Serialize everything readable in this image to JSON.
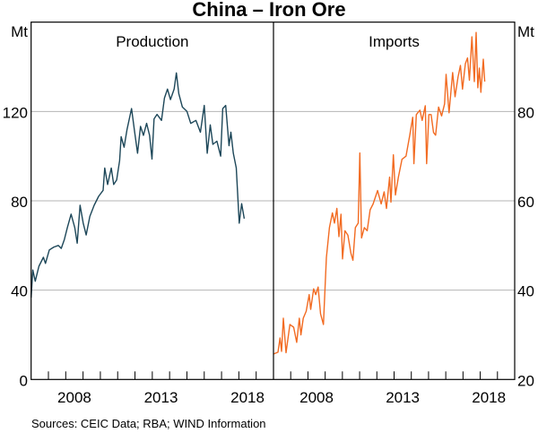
{
  "chart_data": {
    "type": "line",
    "title": "China – Iron Ore",
    "source": "Sources: CEIC Data; RBA; WIND Information",
    "xlim": [
      2006,
      2020
    ],
    "x_ticks": [
      2007,
      2008,
      2009,
      2010,
      2011,
      2012,
      2013,
      2014,
      2015,
      2016,
      2017,
      2018,
      2019
    ],
    "x_tick_labels": [
      "2008",
      "2013",
      "2018"
    ],
    "x_label_years": [
      2008,
      2013,
      2018
    ],
    "panels": [
      {
        "name": "Production",
        "unit": "Mt",
        "axis_side": "left",
        "ylim": [
          0,
          160
        ],
        "y_ticks": [
          0,
          40,
          80,
          120
        ],
        "y_tick_labels": [
          "0",
          "40",
          "80",
          "120"
        ],
        "color": "#1d4759",
        "x": [
          2006.0,
          2006.1,
          2006.24,
          2006.45,
          2006.71,
          2006.83,
          2007.05,
          2007.31,
          2007.57,
          2007.74,
          2007.92,
          2008.09,
          2008.31,
          2008.52,
          2008.66,
          2008.83,
          2009.01,
          2009.18,
          2009.39,
          2009.64,
          2009.9,
          2010.16,
          2010.25,
          2010.42,
          2010.63,
          2010.77,
          2010.94,
          2011.11,
          2011.2,
          2011.37,
          2011.54,
          2011.8,
          2011.98,
          2012.15,
          2012.32,
          2012.49,
          2012.67,
          2012.84,
          2012.98,
          2013.1,
          2013.27,
          2013.53,
          2013.7,
          2013.88,
          2014.05,
          2014.26,
          2014.39,
          2014.53,
          2014.74,
          2015.0,
          2015.22,
          2015.52,
          2015.78,
          2016.0,
          2016.17,
          2016.35,
          2016.5,
          2016.73,
          2016.95,
          2017.07,
          2017.24,
          2017.43,
          2017.54,
          2017.68,
          2017.85,
          2018.02,
          2018.16,
          2018.31
        ],
        "y": [
          36.7,
          49,
          44,
          50.7,
          54.7,
          52,
          58,
          59.3,
          60,
          58.7,
          62.7,
          68,
          74,
          68,
          61,
          78,
          70,
          64.7,
          73,
          78,
          82,
          84.7,
          94.7,
          87.3,
          94.7,
          87.3,
          89.3,
          98,
          108.7,
          104,
          112,
          121.3,
          110.7,
          101.3,
          113.3,
          109.3,
          114.7,
          109.3,
          98.7,
          116.7,
          118.7,
          116,
          126,
          130,
          125.3,
          130,
          137.3,
          128,
          122,
          120,
          114.7,
          116,
          110.7,
          122.7,
          101.3,
          114,
          105.3,
          106.7,
          100,
          121.3,
          122.7,
          104.7,
          110.7,
          101.3,
          94.7,
          70,
          78.7,
          72
        ]
      },
      {
        "name": "Imports",
        "unit": "Mt",
        "axis_side": "right",
        "ylim": [
          20,
          100
        ],
        "y_ticks": [
          20,
          40,
          60,
          80
        ],
        "y_tick_labels": [
          "20",
          "40",
          "60",
          "80"
        ],
        "color": "#f26b22",
        "x": [
          2006.0,
          2006.26,
          2006.38,
          2006.47,
          2006.57,
          2006.73,
          2006.95,
          2007.17,
          2007.35,
          2007.5,
          2007.59,
          2007.73,
          2007.9,
          2008.07,
          2008.16,
          2008.33,
          2008.45,
          2008.59,
          2008.73,
          2008.9,
          2009.07,
          2009.25,
          2009.42,
          2009.54,
          2009.68,
          2009.8,
          2009.92,
          2010.01,
          2010.15,
          2010.32,
          2010.49,
          2010.61,
          2010.75,
          2010.92,
          2011.01,
          2011.11,
          2011.27,
          2011.44,
          2011.61,
          2011.78,
          2012.04,
          2012.25,
          2012.42,
          2012.56,
          2012.74,
          2012.82,
          2012.96,
          2013.08,
          2013.25,
          2013.46,
          2013.69,
          2013.91,
          2014.08,
          2014.15,
          2014.29,
          2014.5,
          2014.63,
          2014.81,
          2014.89,
          2015.02,
          2015.15,
          2015.29,
          2015.41,
          2015.58,
          2015.76,
          2015.93,
          2016.02,
          2016.19,
          2016.4,
          2016.54,
          2016.71,
          2016.85,
          2016.97,
          2017.14,
          2017.26,
          2017.37,
          2017.52,
          2017.66,
          2017.76,
          2017.86,
          2017.95,
          2018.04,
          2018.18,
          2018.26
        ],
        "y": [
          25.7,
          26.1,
          29.3,
          26.3,
          33.7,
          26,
          32.3,
          31.7,
          28.3,
          33.7,
          30,
          33.7,
          35.3,
          39,
          35.7,
          40.3,
          39,
          40.7,
          34.7,
          32.3,
          47.3,
          54,
          57.3,
          55,
          58.3,
          52,
          57,
          47,
          53.3,
          52.3,
          48.3,
          46.7,
          54,
          55,
          70.7,
          51.7,
          54,
          53.3,
          58,
          59.3,
          62.3,
          59.3,
          62,
          58.3,
          65.3,
          59.7,
          70.3,
          61.3,
          65.3,
          69.3,
          70,
          74.7,
          78.7,
          68.3,
          79.3,
          80.3,
          78,
          81.3,
          68.3,
          79.3,
          79.3,
          75.3,
          74.7,
          81,
          79,
          81.7,
          88.3,
          79.7,
          88.7,
          83.3,
          87.7,
          90.3,
          85,
          90.7,
          92,
          87,
          96.7,
          86.7,
          97.7,
          85.3,
          89.7,
          84.3,
          91.7,
          86.7
        ]
      }
    ]
  }
}
